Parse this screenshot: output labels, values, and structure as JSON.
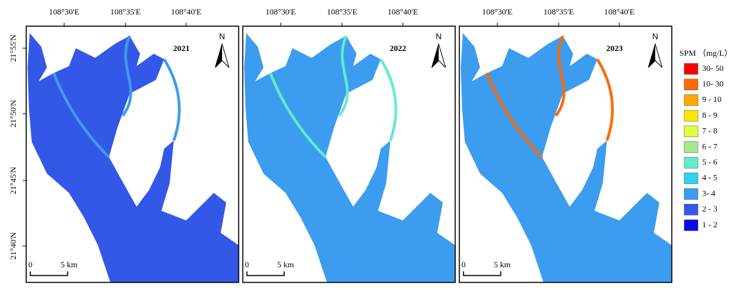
{
  "lon_labels": [
    "108°30'E",
    "108°35'E",
    "108°40'E"
  ],
  "lat_labels": [
    "21°55'N",
    "21°50'N",
    "21°45'N",
    "21°40'N"
  ],
  "panels": [
    {
      "year": "2021"
    },
    {
      "year": "2022"
    },
    {
      "year": "2023"
    }
  ],
  "north": "N",
  "scale_bar": {
    "start": "0",
    "end": "5 km"
  },
  "legend": {
    "title": "SPM （mg/L）",
    "items": [
      {
        "label": "30- 50",
        "color": "#ff0000"
      },
      {
        "label": "10- 30",
        "color": "#ff6a00"
      },
      {
        "label": "9 - 10",
        "color": "#ffa800"
      },
      {
        "label": "8 - 9",
        "color": "#ffe400"
      },
      {
        "label": "7 - 8",
        "color": "#e0ff3c"
      },
      {
        "label": "6 - 7",
        "color": "#a4ec8a"
      },
      {
        "label": "5 - 6",
        "color": "#62eccb"
      },
      {
        "label": "4 - 5",
        "color": "#2fd0f0"
      },
      {
        "label": "3- 4",
        "color": "#3c9cf0"
      },
      {
        "label": "2 - 3",
        "color": "#3358e8"
      },
      {
        "label": "1 - 2",
        "color": "#0a0ae8"
      }
    ]
  }
}
